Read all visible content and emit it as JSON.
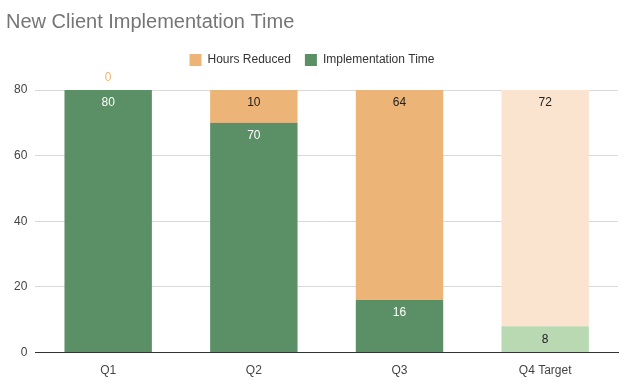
{
  "chart_data": {
    "type": "bar",
    "title": "New Client Implementation Time",
    "categories": [
      "Q1",
      "Q2",
      "Q3",
      "Q4 Target"
    ],
    "series": [
      {
        "name": "Implementation Time",
        "colors": [
          "#5b8f66",
          "#5b8f66",
          "#5b8f66",
          "#b9d9b3"
        ],
        "values": [
          80,
          70,
          16,
          8
        ]
      },
      {
        "name": "Hours Reduced",
        "colors": [
          "#ecb476",
          "#ecb476",
          "#ecb476",
          "#fae4d0"
        ],
        "values": [
          0,
          10,
          64,
          72
        ]
      }
    ],
    "stacked": true,
    "data_labels": true,
    "legend": "top",
    "ylim": [
      0,
      80
    ],
    "yticks": [
      0,
      20,
      40,
      60,
      80
    ],
    "grid": true
  }
}
